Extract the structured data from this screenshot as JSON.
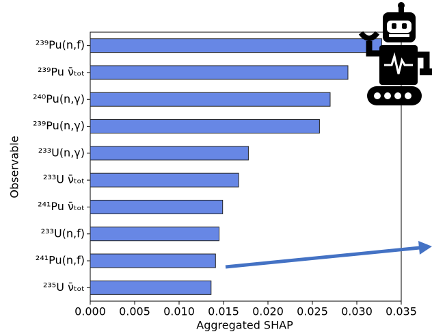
{
  "chart_data": {
    "type": "barh",
    "xlabel": "Aggregated SHAP",
    "ylabel": "Observable",
    "categories": [
      "²³⁹Pu(n,f)",
      "²³⁹Pu ν̄ₜₒₜ",
      "²⁴⁰Pu(n,γ)",
      "²³⁹Pu(n,γ)",
      "²³³U(n,γ)",
      "²³³U ν̄ₜₒₜ",
      "²⁴¹Pu ν̄ₜₒₜ",
      "²³³U(n,f)",
      "²⁴¹Pu(n,f)",
      "²³⁵U ν̄ₜₒₜ"
    ],
    "values": [
      0.0328,
      0.029,
      0.027,
      0.0258,
      0.0178,
      0.0167,
      0.0149,
      0.0145,
      0.0141,
      0.0136
    ],
    "color": "#6787e5",
    "xlim": [
      0,
      0.035
    ],
    "xticks": [
      {
        "value": 0,
        "label": "0.000"
      },
      {
        "value": 0.005,
        "label": "0.005"
      },
      {
        "value": 0.01,
        "label": "0.010"
      },
      {
        "value": 0.015,
        "label": "0.015"
      },
      {
        "value": 0.02,
        "label": "0.020"
      },
      {
        "value": 0.025,
        "label": "0.025"
      },
      {
        "value": 0.03,
        "label": "0.030"
      },
      {
        "value": 0.035,
        "label": "0.035"
      }
    ]
  }
}
